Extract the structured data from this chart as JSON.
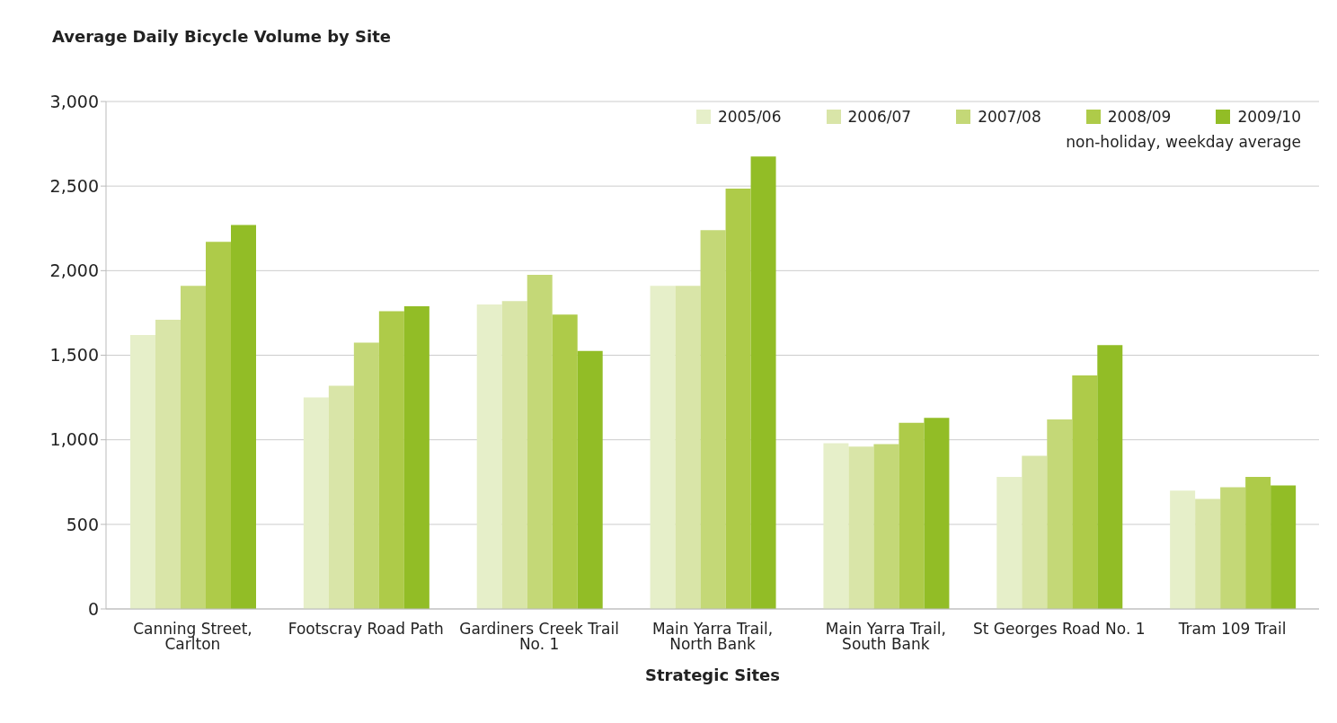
{
  "chart_data": {
    "type": "bar",
    "title": "Average Daily Bicycle Volume by Site",
    "xlabel": "Strategic Sites",
    "categories": [
      "Canning Street, Carlton",
      "Footscray Road Path",
      "Gardiners Creek Trail No. 1",
      "Main Yarra Trail, North Bank",
      "Main Yarra Trail, South Bank",
      "St Georges Road No. 1",
      "Tram 109 Trail"
    ],
    "series": [
      {
        "name": "2005/06",
        "color": "#e6efc9",
        "values": [
          1620,
          1250,
          1800,
          1910,
          980,
          780,
          700
        ]
      },
      {
        "name": "2006/07",
        "color": "#d9e5a8",
        "values": [
          1710,
          1320,
          1820,
          1910,
          960,
          905,
          650
        ]
      },
      {
        "name": "2007/08",
        "color": "#c4d877",
        "values": [
          1910,
          1575,
          1975,
          2240,
          975,
          1120,
          720
        ]
      },
      {
        "name": "2008/09",
        "color": "#aecb49",
        "values": [
          2170,
          1760,
          1740,
          2485,
          1100,
          1380,
          780
        ]
      },
      {
        "name": "2009/10",
        "color": "#92bd26",
        "values": [
          2270,
          1790,
          1525,
          2675,
          1130,
          1560,
          730
        ]
      }
    ],
    "ylim": [
      0,
      3000
    ],
    "yticks": [
      0,
      500,
      {
        "value": 1000,
        "label": "1,000"
      },
      {
        "value": 1500,
        "label": "1,500"
      },
      {
        "value": 2000,
        "label": "2,000"
      },
      {
        "value": 2500,
        "label": "2,500"
      },
      {
        "value": 3000,
        "label": "3,000"
      }
    ],
    "grid": "y",
    "legend": "top right",
    "annotations": [
      "non-holiday, weekday average"
    ]
  }
}
